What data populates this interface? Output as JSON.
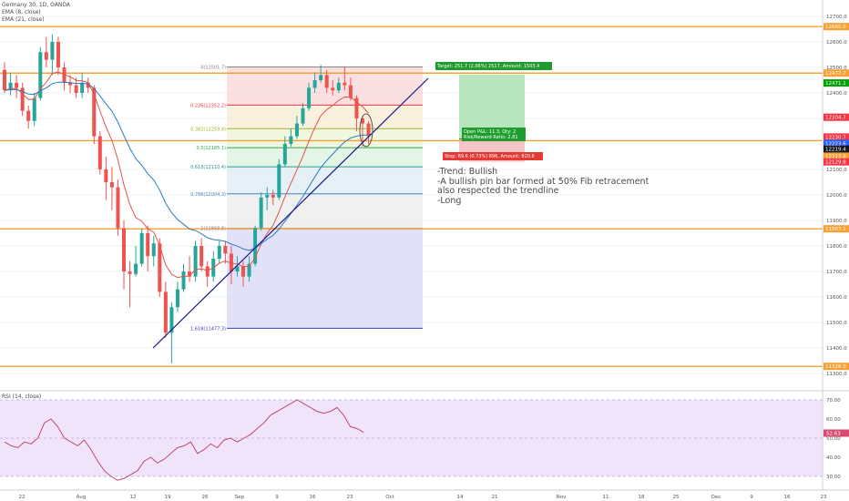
{
  "header": {
    "symbol_line": "Germany 30, 1D, OANDA",
    "ema8": "EMA (8, close)",
    "ema21": "EMA (21, close)"
  },
  "rsi_panel": {
    "label": "RSI (14, close)",
    "scale": [
      "70.00",
      "60.00",
      "50.00",
      "40.00",
      "30.00"
    ],
    "last": "52.63",
    "series": [
      48,
      46,
      45,
      48,
      47,
      50,
      58,
      60,
      56,
      50,
      48,
      46,
      49,
      44,
      38,
      33,
      30,
      28,
      29,
      31,
      33,
      38,
      40,
      37,
      39,
      42,
      45,
      46,
      48,
      42,
      44,
      47,
      45,
      49,
      50,
      48,
      50,
      52,
      55,
      58,
      62,
      64,
      66,
      68,
      70,
      68,
      66,
      64,
      63,
      64,
      66,
      62,
      56,
      55,
      53
    ]
  },
  "price_axis": {
    "labels": [
      "12700.0",
      "12600.0",
      "12500.0",
      "12400.0",
      "12300.0",
      "12200.0",
      "12100.0",
      "12000.0",
      "11900.0",
      "11800.0",
      "11700.0",
      "11600.0",
      "11500.0",
      "11400.0",
      "11300.0"
    ],
    "tags": [
      {
        "text": "12660.0",
        "color": "#f7a135"
      },
      {
        "text": "12477.7",
        "color": "#f7a135"
      },
      {
        "text": "12471.1",
        "color": "#00a000"
      },
      {
        "text": "12304.7",
        "color": "#f23645"
      },
      {
        "text": "12230.7",
        "color": "#f23645"
      },
      {
        "text": "12223.6",
        "color": "#2962ff"
      },
      {
        "text": "12219.4",
        "color": "#131722"
      },
      {
        "text": "12212.8",
        "color": "#f7a135"
      },
      {
        "text": "12129.8",
        "color": "#f23645"
      },
      {
        "text": "11867.1",
        "color": "#f7a135"
      },
      {
        "text": "11328.0",
        "color": "#f7a135"
      }
    ]
  },
  "time_axis": {
    "labels": [
      "22",
      "Aug",
      "12",
      "19",
      "26",
      "Sep",
      "9",
      "16",
      "23",
      "Oct",
      "14",
      "21",
      "Nov",
      "11",
      "18",
      "25",
      "Dec",
      "9",
      "16",
      "23"
    ]
  },
  "fib": {
    "levels": [
      {
        "label": "0(12501.7)"
      },
      {
        "label": "0.236(12352.2)"
      },
      {
        "label": "0.382(12259.8)"
      },
      {
        "label": "0.5(12185.1)"
      },
      {
        "label": "0.618(12110.4)"
      },
      {
        "label": "0.786(12004.3)"
      },
      {
        "label": "1(11868.8)"
      },
      {
        "label": "1.618(11477.3)"
      }
    ]
  },
  "position": {
    "target": "Target: 251.7 (2.06%) 2517, Amount: 1503.4",
    "open_pl": "Open P&L: 11.3, Qty: 2",
    "rr": "Risk/Reward Ratio: 2.81",
    "stop": "Stop: 89.6 (0.73%) 896, Amount: 820.8"
  },
  "note": {
    "lines": "-Trend: Bullish\n-A bullish pin bar formed at 50% Fib retracement\nalso respected the trendline\n-Long"
  },
  "colors": {
    "bull": "#26a69a",
    "bear": "#ef5350",
    "orange": "#f7a135",
    "ema8": "#e5534b",
    "ema21": "#2e7bbd",
    "trend": "#1a1a8c",
    "rsi_line": "#c04a6b",
    "rsi_band": "#f0e4fb"
  },
  "candles": [
    [
      12490,
      12410,
      12520,
      12400
    ],
    [
      12410,
      12440,
      12480,
      12390
    ],
    [
      12440,
      12420,
      12470,
      12380
    ],
    [
      12420,
      12330,
      12440,
      12310
    ],
    [
      12330,
      12290,
      12350,
      12260
    ],
    [
      12290,
      12380,
      12400,
      12270
    ],
    [
      12380,
      12560,
      12580,
      12370
    ],
    [
      12560,
      12530,
      12620,
      12500
    ],
    [
      12530,
      12600,
      12630,
      12470
    ],
    [
      12600,
      12500,
      12620,
      12470
    ],
    [
      12500,
      12440,
      12520,
      12410
    ],
    [
      12440,
      12430,
      12470,
      12400
    ],
    [
      12430,
      12400,
      12460,
      12380
    ],
    [
      12400,
      12440,
      12480,
      12380
    ],
    [
      12440,
      12420,
      12460,
      12400
    ],
    [
      12420,
      12230,
      12430,
      12200
    ],
    [
      12230,
      12100,
      12250,
      12080
    ],
    [
      12100,
      12050,
      12150,
      11980
    ],
    [
      12050,
      12030,
      12110,
      11940
    ],
    [
      12030,
      11870,
      12060,
      11840
    ],
    [
      11870,
      11700,
      11900,
      11630
    ],
    [
      11700,
      11690,
      11740,
      11560
    ],
    [
      11690,
      11730,
      11800,
      11680
    ],
    [
      11730,
      11850,
      11870,
      11720
    ],
    [
      11850,
      11760,
      11880,
      11700
    ],
    [
      11760,
      11810,
      11840,
      11720
    ],
    [
      11810,
      11620,
      11830,
      11600
    ],
    [
      11620,
      11460,
      11660,
      11440
    ],
    [
      11460,
      11560,
      11580,
      11340
    ],
    [
      11560,
      11630,
      11660,
      11540
    ],
    [
      11630,
      11700,
      11730,
      11620
    ],
    [
      11700,
      11680,
      11760,
      11660
    ],
    [
      11680,
      11800,
      11820,
      11660
    ],
    [
      11800,
      11720,
      11830,
      11700
    ],
    [
      11720,
      11680,
      11740,
      11640
    ],
    [
      11680,
      11750,
      11780,
      11660
    ],
    [
      11750,
      11800,
      11820,
      11730
    ],
    [
      11800,
      11770,
      11820,
      11730
    ],
    [
      11770,
      11700,
      11800,
      11650
    ],
    [
      11700,
      11720,
      11760,
      11680
    ],
    [
      11720,
      11680,
      11740,
      11640
    ],
    [
      11680,
      11730,
      11760,
      11660
    ],
    [
      11730,
      11870,
      11880,
      11720
    ],
    [
      11870,
      11990,
      12010,
      11860
    ],
    [
      11990,
      12000,
      12030,
      11940
    ],
    [
      12000,
      11990,
      12020,
      11960
    ],
    [
      11990,
      12120,
      12140,
      11980
    ],
    [
      12120,
      12200,
      12230,
      12110
    ],
    [
      12200,
      12230,
      12260,
      12190
    ],
    [
      12230,
      12280,
      12310,
      12220
    ],
    [
      12280,
      12340,
      12360,
      12270
    ],
    [
      12340,
      12420,
      12440,
      12330
    ],
    [
      12420,
      12450,
      12480,
      12400
    ],
    [
      12450,
      12470,
      12510,
      12440
    ],
    [
      12470,
      12420,
      12490,
      12400
    ],
    [
      12420,
      12410,
      12450,
      12390
    ],
    [
      12410,
      12440,
      12460,
      12400
    ],
    [
      12440,
      12430,
      12500,
      12410
    ],
    [
      12430,
      12380,
      12460,
      12370
    ],
    [
      12380,
      12300,
      12390,
      12250
    ],
    [
      12300,
      12280,
      12310,
      12190
    ],
    [
      12280,
      12230,
      12290,
      12200
    ]
  ]
}
